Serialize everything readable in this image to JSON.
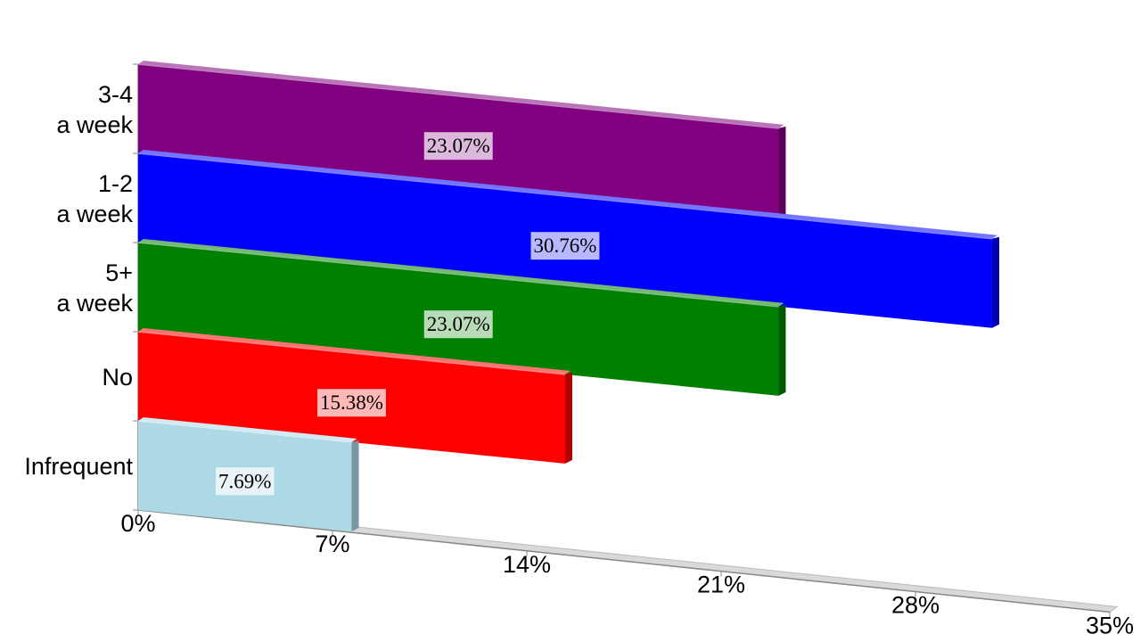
{
  "chart_data": {
    "type": "bar",
    "orientation": "horizontal",
    "categories": [
      "3-4\na week",
      "1-2\na week",
      "5+\na week",
      "No",
      "Infrequent"
    ],
    "values": [
      23.07,
      30.76,
      23.07,
      15.38,
      7.69
    ],
    "value_labels": [
      "23.07%",
      "30.76%",
      "23.07%",
      "15.38%",
      "7.69%"
    ],
    "colors": [
      "#800080",
      "#0000ff",
      "#008000",
      "#ff0000",
      "#add8e6"
    ],
    "xlim": [
      0,
      35
    ],
    "xticks": [
      {
        "value": 0,
        "label": "0%"
      },
      {
        "value": 7,
        "label": "7%"
      },
      {
        "value": 14,
        "label": "14%"
      },
      {
        "value": 21,
        "label": "21%"
      },
      {
        "value": 28,
        "label": "28%"
      },
      {
        "value": 35,
        "label": "35%"
      }
    ]
  }
}
